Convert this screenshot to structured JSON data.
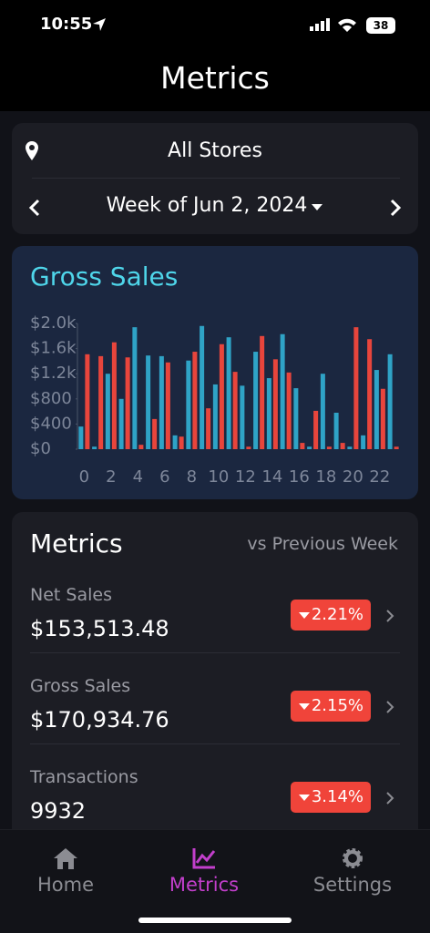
{
  "status_bar": {
    "time": "10:55",
    "battery": "38"
  },
  "header": {
    "title": "Metrics"
  },
  "filters": {
    "store": "All Stores",
    "week": "Week of Jun 2, 2024"
  },
  "chart_data": {
    "type": "bar",
    "title": "Gross Sales",
    "categories": [
      0,
      null,
      2,
      null,
      4,
      null,
      6,
      null,
      8,
      null,
      10,
      null,
      12,
      null,
      14,
      null,
      16,
      null,
      18,
      null,
      20,
      null,
      22,
      null
    ],
    "series": [
      {
        "color": "#2fa3c6",
        "values": [
          360,
          40,
          1200,
          800,
          1940,
          1490,
          1480,
          220,
          1410,
          1960,
          1030,
          1780,
          1010,
          1550,
          1130,
          1830,
          970,
          40,
          1200,
          580,
          40,
          220,
          1260,
          1510
        ]
      },
      {
        "color": "#e8453c",
        "values": [
          1510,
          1480,
          1700,
          1460,
          70,
          480,
          1380,
          200,
          1550,
          650,
          1670,
          1230,
          40,
          1800,
          1430,
          1220,
          100,
          610,
          40,
          100,
          1940,
          1750,
          960,
          40
        ]
      }
    ],
    "ylim": [
      0,
      2000
    ],
    "yticks": [
      {
        "value": 0,
        "label": "$0"
      },
      {
        "value": 400,
        "label": "$400"
      },
      {
        "value": 800,
        "label": "$800"
      },
      {
        "value": 1200,
        "label": "$1.2k"
      },
      {
        "value": 1600,
        "label": "$1.6k"
      },
      {
        "value": 2000,
        "label": "$2.0k"
      }
    ]
  },
  "metrics": {
    "title": "Metrics",
    "comparison": "vs Previous Week",
    "rows": [
      {
        "label": "Net Sales",
        "value": "$153,513.48",
        "change": "2.21%"
      },
      {
        "label": "Gross Sales",
        "value": "$170,934.76",
        "change": "2.15%"
      },
      {
        "label": "Transactions",
        "value": "9932",
        "change": "3.14%"
      }
    ]
  },
  "tab_bar": {
    "tabs": [
      "Home",
      "Metrics",
      "Settings"
    ],
    "active": 1
  }
}
